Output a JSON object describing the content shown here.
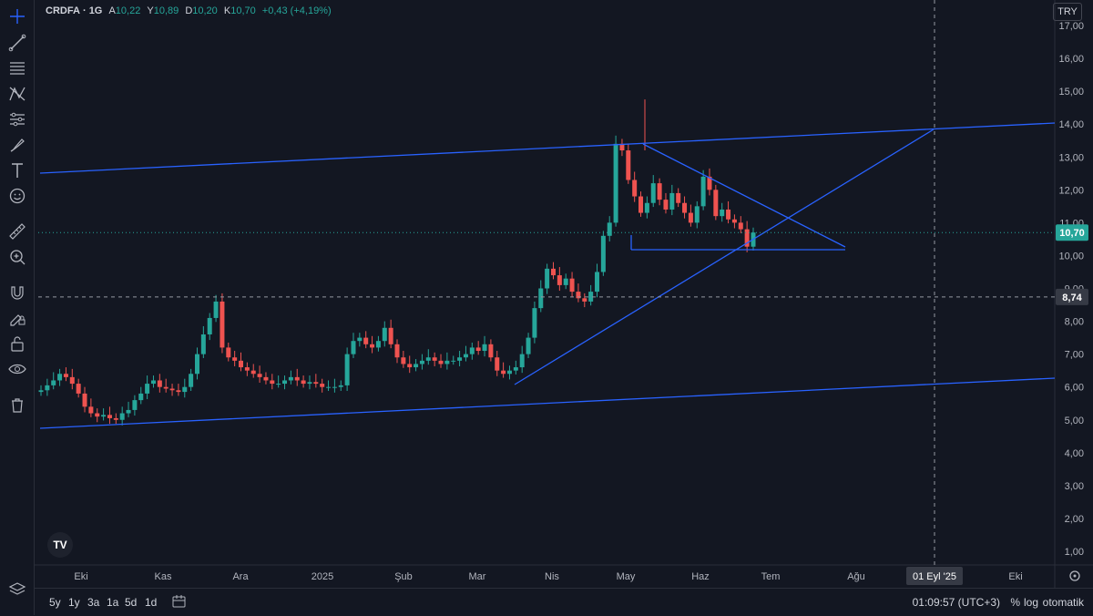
{
  "legend": {
    "symbol": "CRDFA",
    "sep": "·",
    "interval": "1G",
    "open_label": "A",
    "open": "10,22",
    "high_label": "Y",
    "high": "10,89",
    "low_label": "D",
    "low": "10,20",
    "close_label": "K",
    "close": "10,70",
    "change": "+0,43 (+4,19%)"
  },
  "currency": "TRY",
  "price_axis": {
    "ticks": [
      "17,00",
      "16,00",
      "15,00",
      "14,00",
      "13,00",
      "12,00",
      "11,00",
      "10,00",
      "9,00",
      "8,00",
      "7,00",
      "6,00",
      "5,00",
      "4,00",
      "3,00",
      "2,00",
      "1,00"
    ],
    "last_price": "10,70",
    "crosshair_price": "8,74"
  },
  "time_axis": {
    "labels": [
      "Eki",
      "Kas",
      "Ara",
      "2025",
      "Şub",
      "Mar",
      "Nis",
      "May",
      "Haz",
      "Tem",
      "Ağu",
      "Eki"
    ],
    "crosshair_date": "01 Eyl '25"
  },
  "bottom_bar": {
    "timeframes": [
      "5y",
      "1y",
      "3a",
      "1a",
      "5d",
      "1d"
    ],
    "clock": "01:09:57 (UTC+3)",
    "percent": "%",
    "log": "log",
    "auto": "otomatik"
  },
  "colors": {
    "up": "#26a69a",
    "down": "#ef5350",
    "drawing": "#2962ff",
    "background": "#131722"
  },
  "tools": [
    "crosshair-icon",
    "trend-line-icon",
    "fib-icon",
    "pattern-icon",
    "forecast-icon",
    "brush-icon",
    "text-icon",
    "emoji-icon",
    "ruler-icon",
    "zoom-icon",
    "magnet-icon",
    "lock-drawing-icon",
    "lock-icon",
    "eye-icon",
    "trash-icon",
    "layers-icon"
  ],
  "chart_data": {
    "type": "candlestick",
    "title": "CRDFA · 1G",
    "ylim": [
      1,
      17
    ],
    "y_scale": "linear",
    "series": [
      {
        "name": "CRDFA",
        "close": [
          5.9,
          6.05,
          6.2,
          6.4,
          6.3,
          6.1,
          5.8,
          5.4,
          5.2,
          5.1,
          5.15,
          5.05,
          5.0,
          5.2,
          5.3,
          5.6,
          5.8,
          6.1,
          6.2,
          6.0,
          5.95,
          5.9,
          5.85,
          6.0,
          6.4,
          7.0,
          7.6,
          8.1,
          8.6,
          7.2,
          6.9,
          6.8,
          6.6,
          6.5,
          6.4,
          6.3,
          6.2,
          6.1,
          6.1,
          6.2,
          6.3,
          6.2,
          6.1,
          6.15,
          6.1,
          6.0,
          6.0,
          6.0,
          6.05,
          7.0,
          7.4,
          7.5,
          7.3,
          7.2,
          7.4,
          7.8,
          7.3,
          6.9,
          6.7,
          6.6,
          6.7,
          6.8,
          6.9,
          6.8,
          6.7,
          6.8,
          6.8,
          6.9,
          7.0,
          7.2,
          7.1,
          7.3,
          6.9,
          6.5,
          6.4,
          6.5,
          6.6,
          7.0,
          7.5,
          8.4,
          9.0,
          9.6,
          9.4,
          9.1,
          9.3,
          8.9,
          8.7,
          8.6,
          8.9,
          9.5,
          10.6,
          11.0,
          13.4,
          13.2,
          12.3,
          11.8,
          11.3,
          11.6,
          12.2,
          11.7,
          11.4,
          11.9,
          11.6,
          11.3,
          11.0,
          11.5,
          12.4,
          12.0,
          11.2,
          11.4,
          11.1,
          11.0,
          10.8,
          10.27,
          10.7
        ]
      }
    ],
    "overlays": {
      "channel_top_line": {
        "from": [
          "2024-10",
          12.5
        ],
        "to": [
          "2025-09",
          14.0
        ]
      },
      "channel_bottom_line": {
        "from": [
          "2024-10",
          4.7
        ],
        "to": [
          "2025-09",
          6.2
        ]
      },
      "rising_support_line": {
        "from": [
          "2025-03",
          6.0
        ],
        "to": [
          "2025-09",
          13.8
        ]
      },
      "falling_resistance_line": {
        "from": [
          "2025-05",
          13.4
        ],
        "to": [
          "2025-07",
          10.1
        ]
      },
      "horizontal_support_line": {
        "from": [
          "2025-05",
          10.15
        ],
        "to": [
          "2025-07",
          10.15
        ]
      }
    }
  }
}
